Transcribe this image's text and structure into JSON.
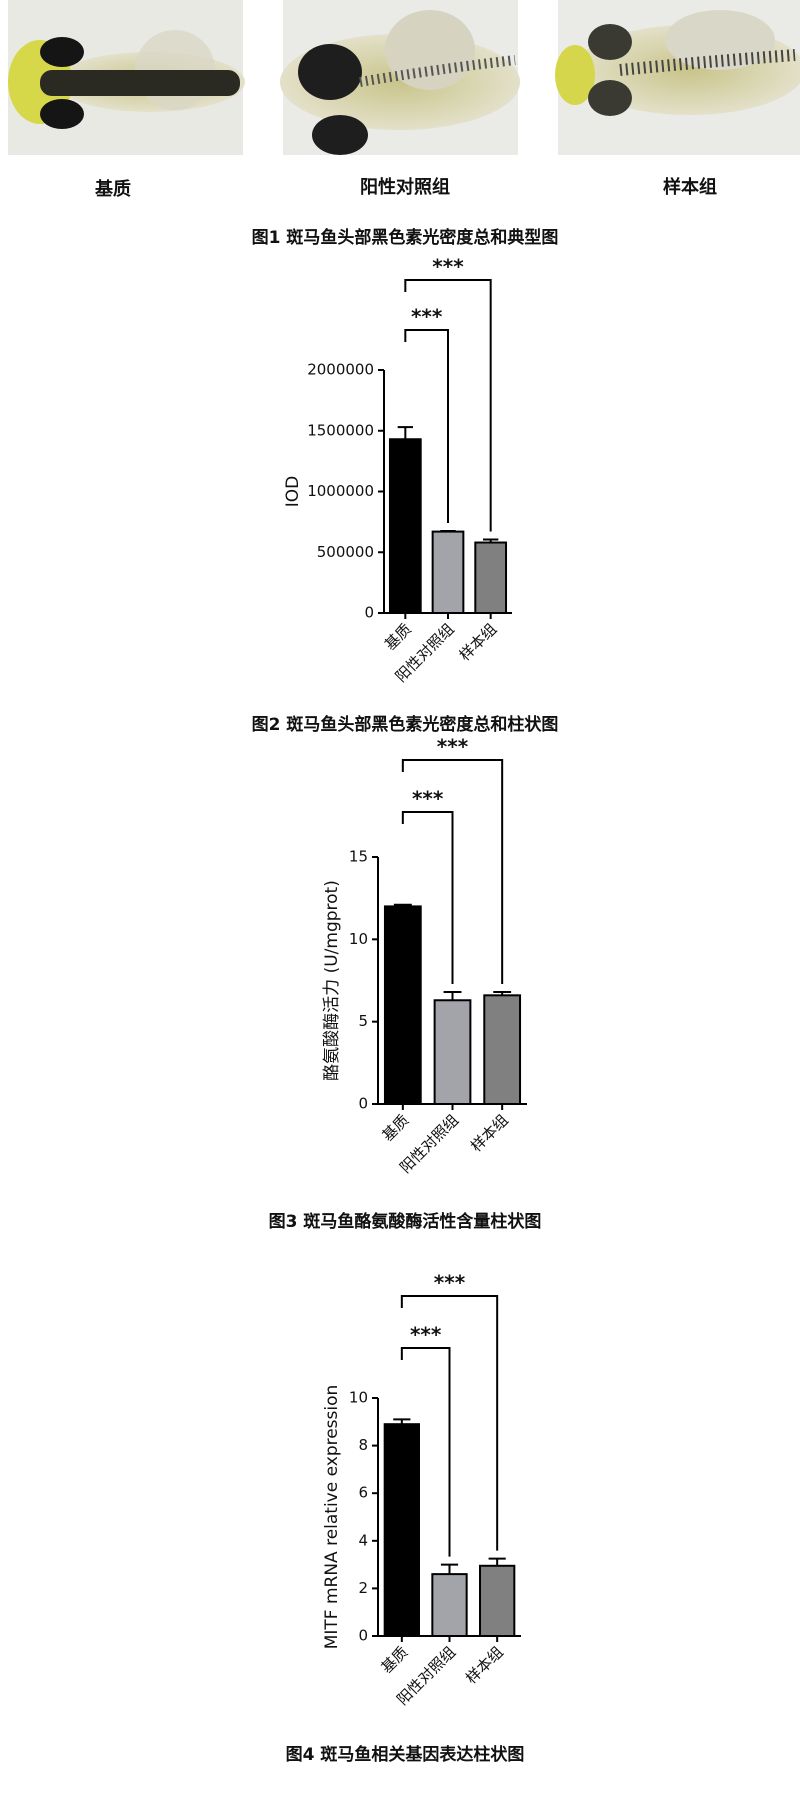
{
  "figure1": {
    "labels": [
      "基质",
      "阳性对照组",
      "样本组"
    ],
    "caption": "图1 斑马鱼头部黑色素光密度总和典型图"
  },
  "chart_data": [
    {
      "type": "bar",
      "caption": "图2 斑马鱼头部黑色素光密度总和柱状图",
      "ylabel": "IOD",
      "categories": [
        "基质",
        "阳性对照组",
        "样本组"
      ],
      "values": [
        1430000,
        670000,
        580000
      ],
      "errors": [
        100000,
        5000,
        25000
      ],
      "colors": [
        "#000000",
        "#a3a3aa",
        "#808080"
      ],
      "ylim": [
        0,
        2000000
      ],
      "yticks": [
        0,
        500000,
        1000000,
        1500000,
        2000000
      ],
      "significance": [
        "***",
        "***"
      ]
    },
    {
      "type": "bar",
      "caption": "图3 斑马鱼酪氨酸酶活性含量柱状图",
      "ylabel": "酪氨酸酶活力 (U/mgprot)",
      "categories": [
        "基质",
        "阳性对照组",
        "样本组"
      ],
      "values": [
        12.0,
        6.3,
        6.6
      ],
      "errors": [
        0.1,
        0.5,
        0.2
      ],
      "colors": [
        "#000000",
        "#a3a3aa",
        "#808080"
      ],
      "ylim": [
        0,
        15
      ],
      "yticks": [
        0,
        5,
        10,
        15
      ],
      "significance": [
        "***",
        "***"
      ]
    },
    {
      "type": "bar",
      "caption": "图4 斑马鱼相关基因表达柱状图",
      "ylabel": "MITF mRNA relative expression",
      "categories": [
        "基质",
        "阳性对照组",
        "样本组"
      ],
      "values": [
        8.9,
        2.6,
        2.95
      ],
      "errors": [
        0.2,
        0.4,
        0.3
      ],
      "colors": [
        "#000000",
        "#a3a3aa",
        "#808080"
      ],
      "ylim": [
        0,
        10
      ],
      "yticks": [
        0,
        2,
        4,
        6,
        8,
        10
      ],
      "significance": [
        "***",
        "***"
      ]
    }
  ]
}
